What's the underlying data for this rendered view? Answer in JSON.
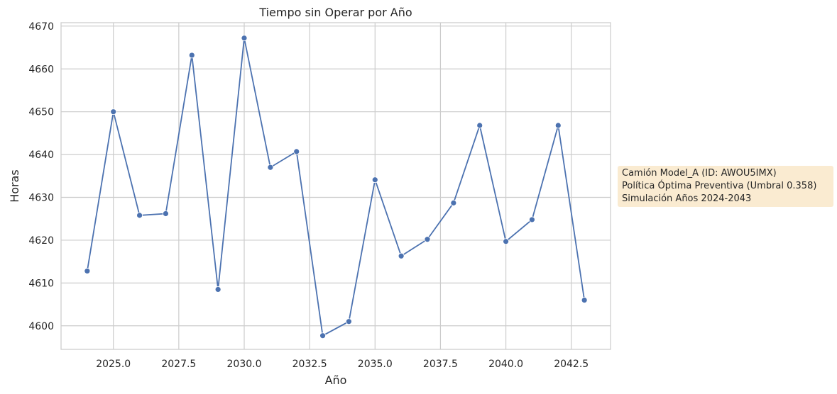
{
  "chart_data": {
    "type": "line",
    "title": "Tiempo sin Operar por Año",
    "xlabel": "Año",
    "ylabel": "Horas",
    "xlim": [
      2023.0,
      2044.0
    ],
    "ylim": [
      4594.5,
      4670.8
    ],
    "x_ticks": [
      2025.0,
      2027.5,
      2030.0,
      2032.5,
      2035.0,
      2037.5,
      2040.0,
      2042.5
    ],
    "x_tick_labels": [
      "2025.0",
      "2027.5",
      "2030.0",
      "2032.5",
      "2035.0",
      "2037.5",
      "2040.0",
      "2042.5"
    ],
    "y_ticks": [
      4600,
      4610,
      4620,
      4630,
      4640,
      4650,
      4660,
      4670
    ],
    "y_tick_labels": [
      "4600",
      "4610",
      "4620",
      "4630",
      "4640",
      "4650",
      "4660",
      "4670"
    ],
    "grid": true,
    "color": "#4c72b0",
    "marker": "circle",
    "x": [
      2024,
      2025,
      2026,
      2027,
      2028,
      2029,
      2030,
      2031,
      2032,
      2033,
      2034,
      2035,
      2036,
      2037,
      2038,
      2039,
      2040,
      2041,
      2042,
      2043
    ],
    "y": [
      4612.8,
      4650.0,
      4625.8,
      4626.2,
      4663.2,
      4608.5,
      4667.2,
      4637.0,
      4640.7,
      4597.7,
      4601.0,
      4634.1,
      4616.3,
      4620.2,
      4628.7,
      4646.8,
      4619.7,
      4624.8,
      4646.8,
      4606.0
    ]
  },
  "annotation": {
    "lines": [
      "Camión Model_A (ID: AWOU5IMX)",
      "Política Óptima Preventiva (Umbral 0.358)",
      "Simulación Años 2024-2043"
    ]
  }
}
